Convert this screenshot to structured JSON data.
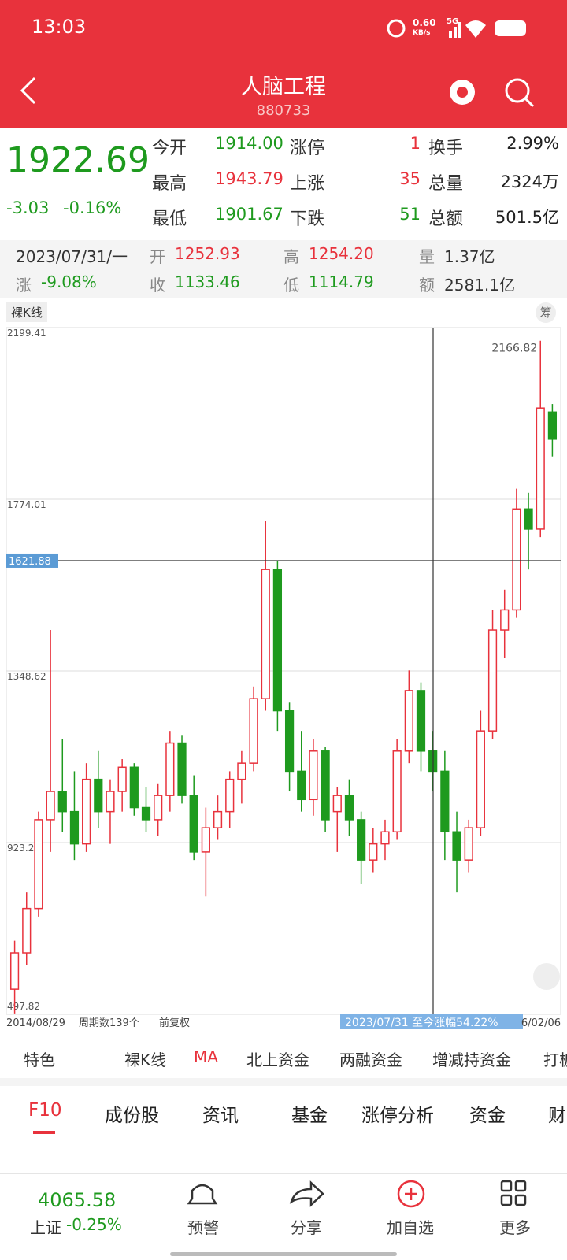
{
  "status_bar": {
    "time": "13:03",
    "speed": "0.60",
    "speed_unit": "KB/s",
    "network": "5G"
  },
  "header": {
    "title": "人脑工程",
    "code": "880733"
  },
  "quote": {
    "price": "1922.69",
    "change": "-3.03",
    "change_pct": "-0.16%",
    "stats": [
      [
        "今开",
        "1914.00",
        "涨停",
        "1",
        "换手",
        "2.99%"
      ],
      [
        "最高",
        "1943.79",
        "上涨",
        "35",
        "总量",
        "2324万"
      ],
      [
        "最低",
        "1901.67",
        "下跌",
        "51",
        "总额",
        "501.5亿"
      ]
    ]
  },
  "info": {
    "rows": [
      [
        "2023/07/31/一",
        "开",
        "1252.93",
        "高",
        "1254.20",
        "量",
        "1.37亿"
      ],
      [
        "涨",
        "-9.08%",
        "收",
        "1133.46",
        "低",
        "1114.79",
        "额",
        "2581.1亿"
      ]
    ]
  },
  "chart_toolbar": {
    "mode": "裸K线",
    "chip": "筹"
  },
  "chart_data": {
    "type": "candlestick",
    "ylim": [
      497.82,
      2199.41
    ],
    "yticks": [
      2199.41,
      1774.01,
      1348.62,
      923.22,
      497.82
    ],
    "grid": true,
    "crosshair": 1621.88,
    "up_color": "#e8323c",
    "down_color": "#1e9a1e",
    "candles": [
      {
        "o": 560,
        "h": 680,
        "l": 500,
        "c": 650
      },
      {
        "o": 650,
        "h": 800,
        "l": 620,
        "c": 760
      },
      {
        "o": 760,
        "h": 1000,
        "l": 740,
        "c": 980
      },
      {
        "o": 980,
        "h": 1450,
        "l": 900,
        "c": 1050
      },
      {
        "o": 1050,
        "h": 1180,
        "l": 950,
        "c": 1000
      },
      {
        "o": 1000,
        "h": 1100,
        "l": 880,
        "c": 920
      },
      {
        "o": 920,
        "h": 1120,
        "l": 900,
        "c": 1080
      },
      {
        "o": 1080,
        "h": 1150,
        "l": 960,
        "c": 1000
      },
      {
        "o": 1000,
        "h": 1080,
        "l": 920,
        "c": 1050
      },
      {
        "o": 1050,
        "h": 1130,
        "l": 1000,
        "c": 1110
      },
      {
        "o": 1110,
        "h": 1120,
        "l": 990,
        "c": 1010
      },
      {
        "o": 1010,
        "h": 1060,
        "l": 950,
        "c": 980
      },
      {
        "o": 980,
        "h": 1070,
        "l": 940,
        "c": 1040
      },
      {
        "o": 1040,
        "h": 1200,
        "l": 1000,
        "c": 1170
      },
      {
        "o": 1170,
        "h": 1190,
        "l": 1020,
        "c": 1040
      },
      {
        "o": 1040,
        "h": 1090,
        "l": 880,
        "c": 900
      },
      {
        "o": 900,
        "h": 1010,
        "l": 790,
        "c": 960
      },
      {
        "o": 960,
        "h": 1040,
        "l": 930,
        "c": 1000
      },
      {
        "o": 1000,
        "h": 1100,
        "l": 960,
        "c": 1080
      },
      {
        "o": 1080,
        "h": 1150,
        "l": 1020,
        "c": 1120
      },
      {
        "o": 1120,
        "h": 1310,
        "l": 1100,
        "c": 1280
      },
      {
        "o": 1280,
        "h": 1720,
        "l": 1250,
        "c": 1600
      },
      {
        "o": 1600,
        "h": 1620,
        "l": 1200,
        "c": 1250
      },
      {
        "o": 1250,
        "h": 1270,
        "l": 1050,
        "c": 1100
      },
      {
        "o": 1100,
        "h": 1200,
        "l": 1000,
        "c": 1030
      },
      {
        "o": 1030,
        "h": 1180,
        "l": 990,
        "c": 1150
      },
      {
        "o": 1150,
        "h": 1160,
        "l": 950,
        "c": 980
      },
      {
        "o": 1000,
        "h": 1060,
        "l": 900,
        "c": 1040
      },
      {
        "o": 1040,
        "h": 1080,
        "l": 940,
        "c": 980
      },
      {
        "o": 980,
        "h": 1000,
        "l": 820,
        "c": 880
      },
      {
        "o": 880,
        "h": 960,
        "l": 850,
        "c": 920
      },
      {
        "o": 920,
        "h": 980,
        "l": 880,
        "c": 950
      },
      {
        "o": 950,
        "h": 1180,
        "l": 930,
        "c": 1150
      },
      {
        "o": 1150,
        "h": 1350,
        "l": 1120,
        "c": 1300
      },
      {
        "o": 1300,
        "h": 1320,
        "l": 1100,
        "c": 1150
      },
      {
        "o": 1150,
        "h": 1200,
        "l": 1050,
        "c": 1100
      },
      {
        "o": 1100,
        "h": 1150,
        "l": 880,
        "c": 950
      },
      {
        "o": 950,
        "h": 1000,
        "l": 800,
        "c": 880
      },
      {
        "o": 880,
        "h": 980,
        "l": 850,
        "c": 960
      },
      {
        "o": 960,
        "h": 1250,
        "l": 940,
        "c": 1200
      },
      {
        "o": 1200,
        "h": 1500,
        "l": 1180,
        "c": 1450
      },
      {
        "o": 1450,
        "h": 1550,
        "l": 1380,
        "c": 1500
      },
      {
        "o": 1500,
        "h": 1800,
        "l": 1480,
        "c": 1750
      },
      {
        "o": 1750,
        "h": 1790,
        "l": 1600,
        "c": 1700
      },
      {
        "o": 1700,
        "h": 2166.82,
        "l": 1680,
        "c": 2000
      },
      {
        "o": 1990,
        "h": 2010,
        "l": 1880,
        "c": 1922.69
      }
    ]
  },
  "chart_footer": {
    "start_date": "2014/08/29",
    "periods": "周期数139个",
    "adjust": "前复权",
    "range_note": "2023/07/31 至今涨幅54.22%",
    "end_date": "6/02/06"
  },
  "indicator_tabs": [
    "特色",
    "裸K线",
    "MA",
    "北上资金",
    "两融资金",
    "增减持资金",
    "打板"
  ],
  "section_tabs": [
    "F10",
    "成份股",
    "资讯",
    "基金",
    "涨停分析",
    "资金",
    "财"
  ],
  "bottom_nav": {
    "index_value": "4065.58",
    "index_name": "上证",
    "index_change": "-0.25%",
    "items": [
      "预警",
      "分享",
      "加自选",
      "更多"
    ]
  }
}
